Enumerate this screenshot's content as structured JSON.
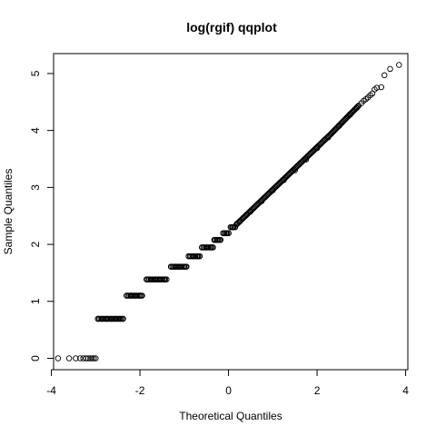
{
  "chart_data": {
    "type": "scatter",
    "title": "log(rgif) qqplot",
    "xlabel": "Theoretical Quantiles",
    "ylabel": "Sample Quantiles",
    "xlim": [
      -3.95,
      4.05
    ],
    "ylim": [
      -0.2,
      5.35
    ],
    "xticks": [
      -4,
      -2,
      0,
      2,
      4
    ],
    "yticks": [
      0,
      1,
      2,
      3,
      4,
      5
    ],
    "grid": false,
    "legend": "none",
    "series": [
      {
        "marker": "open-circle",
        "x": [
          -3.85,
          -3.6,
          -3.45,
          -3.35,
          -3.28,
          -3.22,
          -3.17,
          -3.12,
          -3.08,
          -3.04,
          -3.0,
          -2.95,
          -2.85,
          -2.75,
          -2.65,
          -2.55,
          -2.45,
          -2.38,
          -2.3,
          -2.2,
          -2.1,
          -2.0,
          -1.95,
          -1.85,
          -1.75,
          -1.65,
          -1.55,
          -1.45,
          -1.4,
          -1.3,
          -1.2,
          -1.1,
          -1.0,
          -0.95,
          -0.9,
          -0.8,
          -0.7,
          -0.65,
          -0.6,
          -0.5,
          -0.4,
          -0.35,
          -0.32,
          -0.25,
          -0.18,
          -0.12,
          -0.05,
          0.0,
          0.05,
          0.1,
          0.15,
          0.25,
          0.5,
          0.75,
          1.0,
          1.25,
          1.5,
          1.75,
          2.0,
          2.25,
          2.5,
          2.75,
          2.9,
          3.0,
          3.05,
          3.1,
          3.15,
          3.2,
          3.25,
          3.3,
          3.35,
          3.45,
          3.52,
          3.65,
          3.85
        ],
        "y": [
          0,
          0,
          0,
          0,
          0,
          0,
          0,
          0,
          0,
          0,
          0,
          0.693,
          0.693,
          0.693,
          0.693,
          0.693,
          0.693,
          0.693,
          1.099,
          1.099,
          1.099,
          1.099,
          1.099,
          1.386,
          1.386,
          1.386,
          1.386,
          1.386,
          1.386,
          1.609,
          1.609,
          1.609,
          1.609,
          1.609,
          1.792,
          1.792,
          1.792,
          1.792,
          1.946,
          1.946,
          1.946,
          1.946,
          2.079,
          2.079,
          2.079,
          2.197,
          2.197,
          2.197,
          2.303,
          2.303,
          2.303,
          2.4,
          2.58,
          2.76,
          2.95,
          3.13,
          3.3,
          3.49,
          3.69,
          3.88,
          4.08,
          4.28,
          4.4,
          4.48,
          4.52,
          4.55,
          4.58,
          4.62,
          4.65,
          4.72,
          4.75,
          4.76,
          4.97,
          5.08,
          5.15
        ]
      }
    ]
  }
}
